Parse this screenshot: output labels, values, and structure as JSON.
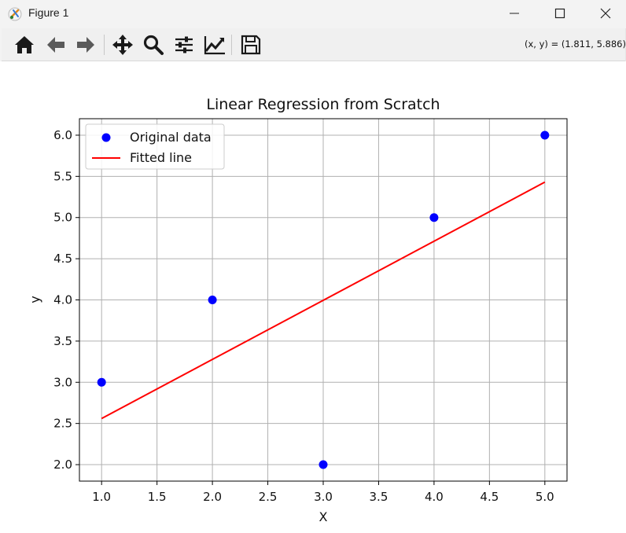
{
  "window": {
    "title": "Figure 1",
    "minimize_icon": "minimize-icon",
    "maximize_icon": "maximize-icon",
    "close_icon": "close-icon"
  },
  "toolbar": {
    "buttons": [
      "home-icon",
      "back-arrow-icon",
      "forward-arrow-icon",
      "pan-icon",
      "zoom-icon",
      "subplots-config-icon",
      "edit-axis-icon",
      "save-icon"
    ],
    "coords": "(x, y) = (1.811, 5.886)"
  },
  "chart_data": {
    "type": "scatter",
    "title": "Linear Regression from Scratch",
    "xlabel": "X",
    "ylabel": "y",
    "xlim": [
      0.8,
      5.2
    ],
    "ylim": [
      1.8,
      6.2
    ],
    "xticks": [
      "1.0",
      "1.5",
      "2.0",
      "2.5",
      "3.0",
      "3.5",
      "4.0",
      "4.5",
      "5.0"
    ],
    "yticks": [
      "2.0",
      "2.5",
      "3.0",
      "3.5",
      "4.0",
      "4.5",
      "5.0",
      "5.5",
      "6.0"
    ],
    "grid": true,
    "legend_position": "top-left",
    "series": [
      {
        "name": "Original data",
        "kind": "scatter",
        "color": "#0000ff",
        "x": [
          1,
          2,
          3,
          4,
          5
        ],
        "y": [
          3,
          4,
          2,
          5,
          6
        ]
      },
      {
        "name": "Fitted line",
        "kind": "line",
        "color": "#ff0000",
        "x": [
          1,
          5
        ],
        "y": [
          2.56,
          5.43
        ]
      }
    ]
  }
}
